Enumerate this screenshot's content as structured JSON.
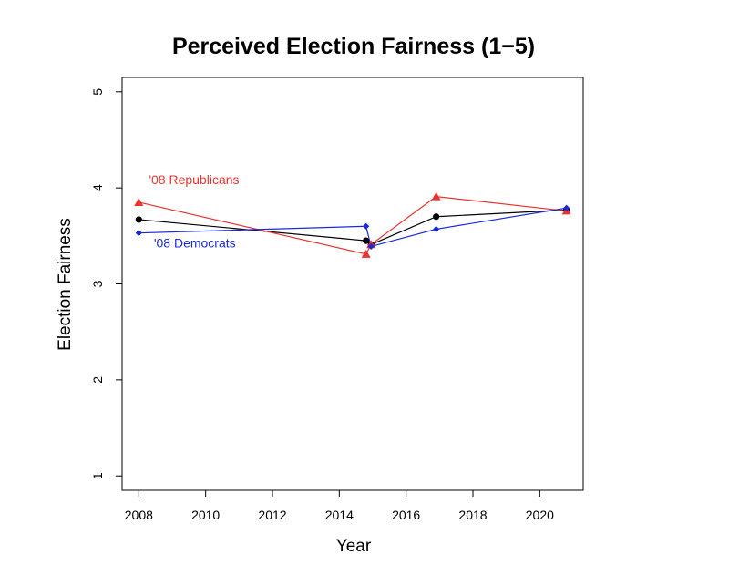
{
  "chart_data": {
    "type": "line",
    "title": "Perceived Election Fairness (1−5)",
    "xlabel": "Year",
    "ylabel": "Election Fairness",
    "xlim": [
      2007.5,
      2021.3
    ],
    "ylim": [
      0.85,
      5.15
    ],
    "x_ticks": [
      "2008",
      "2010",
      "2012",
      "2014",
      "2016",
      "2018",
      "2020"
    ],
    "y_ticks": [
      "1",
      "2",
      "3",
      "4",
      "5"
    ],
    "grid": false,
    "series": [
      {
        "name": "",
        "color": "#000000",
        "marker": "circle",
        "points": [
          [
            2008,
            3.67
          ],
          [
            2014.8,
            3.45
          ],
          [
            2014.95,
            3.41
          ],
          [
            2016.9,
            3.7
          ],
          [
            2020.8,
            3.77
          ]
        ]
      },
      {
        "name": "'08 Republicans",
        "color": "#e8342e",
        "marker": "triangle",
        "points": [
          [
            2008,
            3.85
          ],
          [
            2014.8,
            3.31
          ],
          [
            2014.95,
            3.41
          ],
          [
            2016.9,
            3.91
          ],
          [
            2020.8,
            3.76
          ]
        ]
      },
      {
        "name": "'08 Democrats",
        "color": "#1a2ad8",
        "marker": "diamond",
        "points": [
          [
            2008,
            3.53
          ],
          [
            2014.8,
            3.6
          ],
          [
            2014.95,
            3.39
          ],
          [
            2016.9,
            3.57
          ],
          [
            2020.8,
            3.79
          ]
        ]
      }
    ],
    "annotations": [
      {
        "text": "'08 Republicans",
        "color": "#e8342e",
        "x": 2008.3,
        "y": 4.04
      },
      {
        "text": "'08 Democrats",
        "color": "#1a2ad8",
        "x": 2008.45,
        "y": 3.38
      }
    ]
  }
}
